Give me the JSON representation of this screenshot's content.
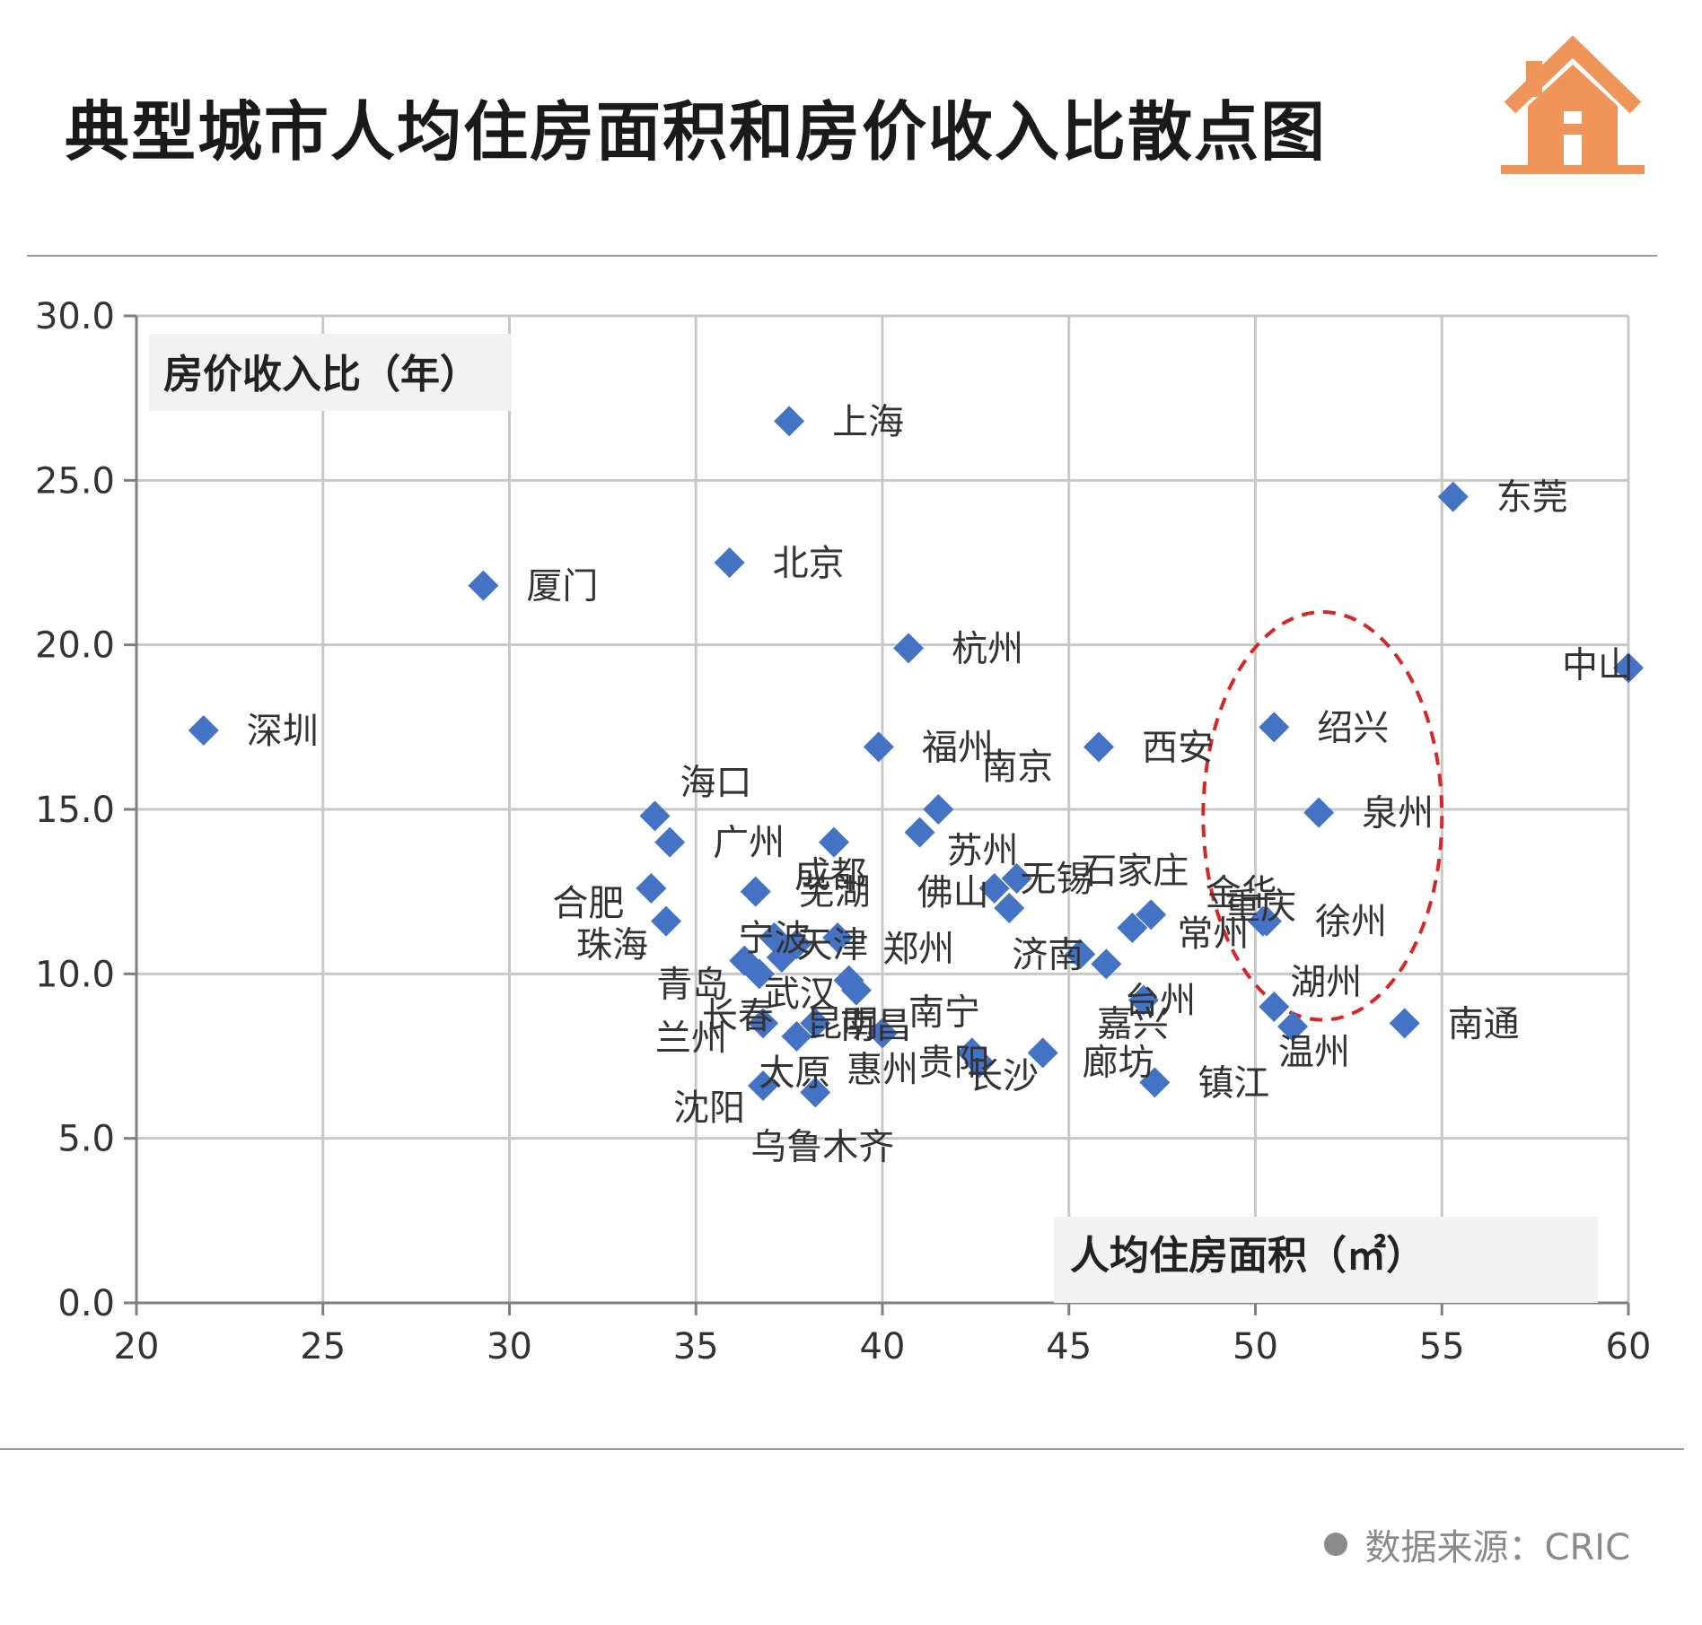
{
  "header": {
    "title": "典型城市人均住房面积和房价收入比散点图"
  },
  "colors": {
    "marker": "#4472C4",
    "grid": "#c8c8c8",
    "axis": "#7f7f7f",
    "highlight_circle": "#d62728",
    "house_icon": "#F0955A"
  },
  "icons": {
    "logo": "house-icon"
  },
  "footer": {
    "source": "数据来源：CRIC"
  },
  "chart_data": {
    "type": "scatter",
    "xlabel": "人均住房面积（㎡）",
    "ylabel": "房价收入比（年）",
    "xlim": [
      20,
      60
    ],
    "ylim": [
      0,
      30
    ],
    "x_ticks": [
      "20",
      "25",
      "30",
      "35",
      "40",
      "45",
      "50",
      "55",
      "60"
    ],
    "y_ticks": [
      "0.0",
      "5.0",
      "10.0",
      "15.0",
      "20.0",
      "25.0",
      "30.0"
    ],
    "grid": true,
    "annotations": [
      {
        "type": "dashed-ellipse",
        "cx": 51.8,
        "cy": 14.8,
        "rx": 3.2,
        "ry": 6.2
      }
    ],
    "points": [
      {
        "name": "上海",
        "x": 37.5,
        "y": 26.8
      },
      {
        "name": "东莞",
        "x": 55.3,
        "y": 24.5
      },
      {
        "name": "北京",
        "x": 35.9,
        "y": 22.5
      },
      {
        "name": "厦门",
        "x": 29.3,
        "y": 21.8
      },
      {
        "name": "杭州",
        "x": 40.7,
        "y": 19.9
      },
      {
        "name": "中山",
        "x": 60.0,
        "y": 19.3
      },
      {
        "name": "深圳",
        "x": 21.8,
        "y": 17.4
      },
      {
        "name": "福州",
        "x": 39.9,
        "y": 16.9
      },
      {
        "name": "西安",
        "x": 45.8,
        "y": 16.9
      },
      {
        "name": "绍兴",
        "x": 50.5,
        "y": 17.5
      },
      {
        "name": "南京",
        "x": 41.5,
        "y": 15.0
      },
      {
        "name": "海口",
        "x": 33.9,
        "y": 14.8
      },
      {
        "name": "泉州",
        "x": 51.7,
        "y": 14.9
      },
      {
        "name": "广州",
        "x": 34.3,
        "y": 14.0
      },
      {
        "name": "苏州",
        "x": 41.0,
        "y": 14.3
      },
      {
        "name": "成都",
        "x": 38.7,
        "y": 14.0
      },
      {
        "name": "合肥",
        "x": 33.8,
        "y": 12.6
      },
      {
        "name": "芜湖",
        "x": 36.6,
        "y": 12.5
      },
      {
        "name": "佛山",
        "x": 43.0,
        "y": 12.6
      },
      {
        "name": "无锡",
        "x": 43.6,
        "y": 12.9
      },
      {
        "name": "石家庄",
        "x": 43.4,
        "y": 12.0
      },
      {
        "name": "珠海",
        "x": 34.2,
        "y": 11.6
      },
      {
        "name": "重庆",
        "x": 47.2,
        "y": 11.8
      },
      {
        "name": "常州",
        "x": 46.7,
        "y": 11.4
      },
      {
        "name": "金华",
        "x": 50.2,
        "y": 11.6
      },
      {
        "name": "宁波",
        "x": 37.1,
        "y": 11.1
      },
      {
        "name": "天津",
        "x": 37.7,
        "y": 10.9
      },
      {
        "name": "郑州",
        "x": 38.8,
        "y": 11.1
      },
      {
        "name": "徐州",
        "x": 50.3,
        "y": 11.6
      },
      {
        "name": "济南",
        "x": 45.3,
        "y": 10.6
      },
      {
        "name": "台州",
        "x": 46.0,
        "y": 10.3
      },
      {
        "name": "青岛",
        "x": 36.3,
        "y": 10.4
      },
      {
        "name": "长春",
        "x": 36.7,
        "y": 10.0
      },
      {
        "name": "武汉",
        "x": 37.3,
        "y": 10.5
      },
      {
        "name": "南昌",
        "x": 39.1,
        "y": 9.8
      },
      {
        "name": "南宁",
        "x": 39.3,
        "y": 9.5
      },
      {
        "name": "湖州",
        "x": 50.5,
        "y": 9.0
      },
      {
        "name": "嘉兴",
        "x": 47.0,
        "y": 9.2
      },
      {
        "name": "兰州",
        "x": 36.8,
        "y": 8.5
      },
      {
        "name": "昆明",
        "x": 38.2,
        "y": 8.5
      },
      {
        "name": "南通",
        "x": 54.0,
        "y": 8.5
      },
      {
        "name": "温州",
        "x": 51.0,
        "y": 8.4
      },
      {
        "name": "太原",
        "x": 37.7,
        "y": 8.1
      },
      {
        "name": "惠州",
        "x": 40.0,
        "y": 8.2
      },
      {
        "name": "贵阳",
        "x": 42.4,
        "y": 7.6
      },
      {
        "name": "廊坊",
        "x": 44.3,
        "y": 7.6
      },
      {
        "name": "长沙",
        "x": 42.6,
        "y": 7.3
      },
      {
        "name": "镇江",
        "x": 47.3,
        "y": 6.7
      },
      {
        "name": "沈阳",
        "x": 36.8,
        "y": 6.6
      },
      {
        "name": "乌鲁木齐",
        "x": 38.2,
        "y": 6.4
      }
    ]
  }
}
